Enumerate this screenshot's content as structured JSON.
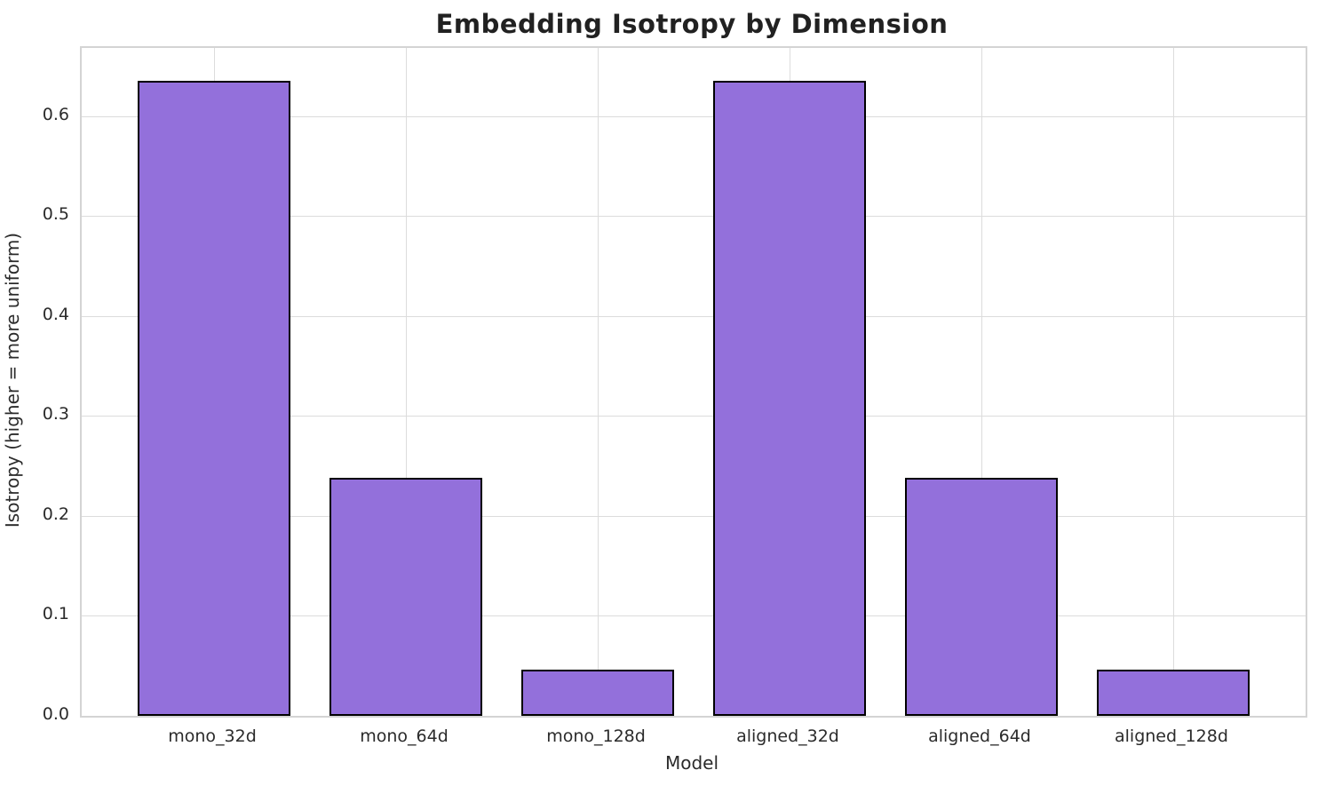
{
  "chart": {
    "title": "Embedding Isotropy by Dimension",
    "xlabel": "Model",
    "ylabel": "Isotropy (higher = more uniform)"
  },
  "chart_data": {
    "type": "bar",
    "title": "Embedding Isotropy by Dimension",
    "xlabel": "Model",
    "ylabel": "Isotropy (higher = more uniform)",
    "categories": [
      "mono_32d",
      "mono_64d",
      "mono_128d",
      "aligned_32d",
      "aligned_64d",
      "aligned_128d"
    ],
    "values": [
      0.635,
      0.238,
      0.046,
      0.635,
      0.238,
      0.046
    ],
    "ylim": [
      0,
      0.668
    ],
    "yticks": [
      "0.0",
      "0.1",
      "0.2",
      "0.3",
      "0.4",
      "0.5",
      "0.6"
    ],
    "grid": true,
    "legend_position": "none",
    "colors": {
      "bar_fill": "#9370DB",
      "bar_edge": "#000000",
      "grid": "#dcdcdc",
      "spine": "#d4d4d4",
      "text": "#2b2b2b",
      "title": "#212121"
    }
  }
}
